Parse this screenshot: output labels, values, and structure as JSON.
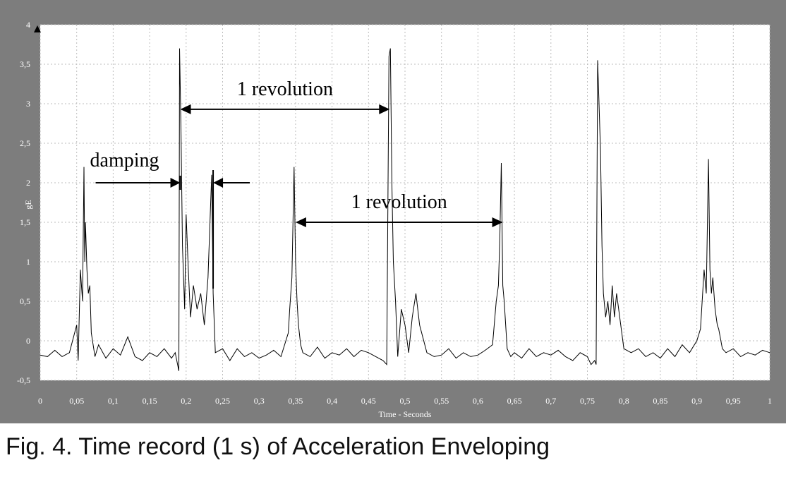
{
  "caption": "Fig. 4. Time record (1 s) of Acceleration Enveloping",
  "colors": {
    "frame": "#7d7d7d",
    "plot_bg": "#ffffff",
    "grid": "#bdbdbd",
    "trace": "#000000",
    "axis_text": "#ffffff"
  },
  "chart_data": {
    "type": "line",
    "title": "",
    "xlabel": "Time - Seconds",
    "ylabel": "gE",
    "xlim": [
      0,
      1
    ],
    "ylim": [
      -0.5,
      4
    ],
    "grid": true,
    "x_ticks": [
      "0",
      "0,05",
      "0,1",
      "0,15",
      "0,2",
      "0,25",
      "0,3",
      "0,35",
      "0,4",
      "0,45",
      "0,5",
      "0,55",
      "0,6",
      "0,65",
      "0,7",
      "0,75",
      "0,8",
      "0,85",
      "0,9",
      "0,95",
      "1"
    ],
    "y_ticks": [
      "-0,5",
      "0",
      "0,5",
      "1",
      "1,5",
      "2",
      "2,5",
      "3",
      "3,5",
      "4"
    ],
    "series": [
      {
        "x": [
          0,
          0.01,
          0.02,
          0.03,
          0.04,
          0.05,
          0.052,
          0.055,
          0.058,
          0.06,
          0.061,
          0.062,
          0.064,
          0.066,
          0.068,
          0.07,
          0.075,
          0.08,
          0.09,
          0.1,
          0.11,
          0.12,
          0.13,
          0.14,
          0.15,
          0.16,
          0.17,
          0.18,
          0.185,
          0.19,
          0.191,
          0.192,
          0.193,
          0.195,
          0.198,
          0.2,
          0.203,
          0.206,
          0.21,
          0.215,
          0.22,
          0.225,
          0.23,
          0.235,
          0.237,
          0.24,
          0.25,
          0.26,
          0.27,
          0.28,
          0.29,
          0.3,
          0.31,
          0.32,
          0.33,
          0.34,
          0.342,
          0.345,
          0.348,
          0.35,
          0.352,
          0.354,
          0.357,
          0.36,
          0.37,
          0.38,
          0.39,
          0.4,
          0.41,
          0.42,
          0.43,
          0.44,
          0.45,
          0.46,
          0.47,
          0.475,
          0.478,
          0.48,
          0.482,
          0.484,
          0.487,
          0.49,
          0.495,
          0.5,
          0.505,
          0.51,
          0.515,
          0.52,
          0.53,
          0.54,
          0.55,
          0.56,
          0.57,
          0.58,
          0.59,
          0.6,
          0.61,
          0.62,
          0.625,
          0.628,
          0.63,
          0.632,
          0.634,
          0.636,
          0.64,
          0.645,
          0.65,
          0.66,
          0.67,
          0.68,
          0.69,
          0.7,
          0.71,
          0.72,
          0.73,
          0.74,
          0.75,
          0.755,
          0.76,
          0.762,
          0.764,
          0.766,
          0.768,
          0.77,
          0.772,
          0.775,
          0.778,
          0.781,
          0.784,
          0.787,
          0.79,
          0.8,
          0.81,
          0.82,
          0.83,
          0.84,
          0.85,
          0.86,
          0.87,
          0.88,
          0.89,
          0.9,
          0.905,
          0.91,
          0.913,
          0.916,
          0.918,
          0.92,
          0.922,
          0.925,
          0.928,
          0.93,
          0.935,
          0.94,
          0.95,
          0.96,
          0.97,
          0.98,
          0.99,
          1.0
        ],
        "values": [
          -0.18,
          -0.2,
          -0.12,
          -0.2,
          -0.15,
          0.2,
          -0.25,
          0.9,
          0.5,
          2.2,
          1.0,
          1.5,
          0.9,
          0.6,
          0.7,
          0.1,
          -0.2,
          -0.05,
          -0.22,
          -0.1,
          -0.18,
          0.05,
          -0.2,
          -0.25,
          -0.15,
          -0.2,
          -0.1,
          -0.22,
          -0.15,
          -0.38,
          3.7,
          3.2,
          2.6,
          1.2,
          0.4,
          1.6,
          0.9,
          0.3,
          0.7,
          0.4,
          0.6,
          0.2,
          0.8,
          2.1,
          0.6,
          -0.15,
          -0.1,
          -0.25,
          -0.1,
          -0.2,
          -0.15,
          -0.22,
          -0.18,
          -0.12,
          -0.2,
          0.1,
          0.4,
          0.8,
          2.2,
          1.0,
          0.5,
          0.2,
          -0.05,
          -0.15,
          -0.2,
          -0.08,
          -0.22,
          -0.15,
          -0.18,
          -0.1,
          -0.2,
          -0.12,
          -0.15,
          -0.2,
          -0.25,
          -0.3,
          3.6,
          3.7,
          2.0,
          1.0,
          0.5,
          -0.2,
          0.4,
          0.2,
          -0.15,
          0.3,
          0.6,
          0.2,
          -0.15,
          -0.2,
          -0.18,
          -0.1,
          -0.22,
          -0.15,
          -0.2,
          -0.18,
          -0.12,
          -0.05,
          0.5,
          0.7,
          1.3,
          2.25,
          0.7,
          0.5,
          -0.1,
          -0.2,
          -0.15,
          -0.22,
          -0.1,
          -0.2,
          -0.15,
          -0.18,
          -0.12,
          -0.2,
          -0.25,
          -0.15,
          -0.2,
          -0.3,
          -0.25,
          -0.3,
          3.55,
          3.0,
          2.4,
          1.2,
          0.6,
          0.3,
          0.5,
          0.2,
          0.7,
          0.3,
          0.6,
          -0.1,
          -0.15,
          -0.1,
          -0.2,
          -0.15,
          -0.22,
          -0.1,
          -0.2,
          -0.05,
          -0.15,
          0.0,
          0.15,
          0.9,
          0.6,
          2.3,
          0.9,
          0.6,
          0.8,
          0.4,
          0.2,
          0.15,
          -0.1,
          -0.15,
          -0.1,
          -0.2,
          -0.15,
          -0.18,
          -0.12,
          -0.15
        ]
      }
    ],
    "annotations": [
      {
        "text": "1 revolution",
        "arrow_x": [
          0.192,
          0.479
        ],
        "arrow_y": 2.93
      },
      {
        "text": "1 revolution",
        "arrow_x": [
          0.35,
          0.634
        ],
        "arrow_y": 1.5
      },
      {
        "text": "damping",
        "arrow_x": [
          0.192,
          0.237
        ],
        "arrow_y": 2.0
      }
    ]
  }
}
